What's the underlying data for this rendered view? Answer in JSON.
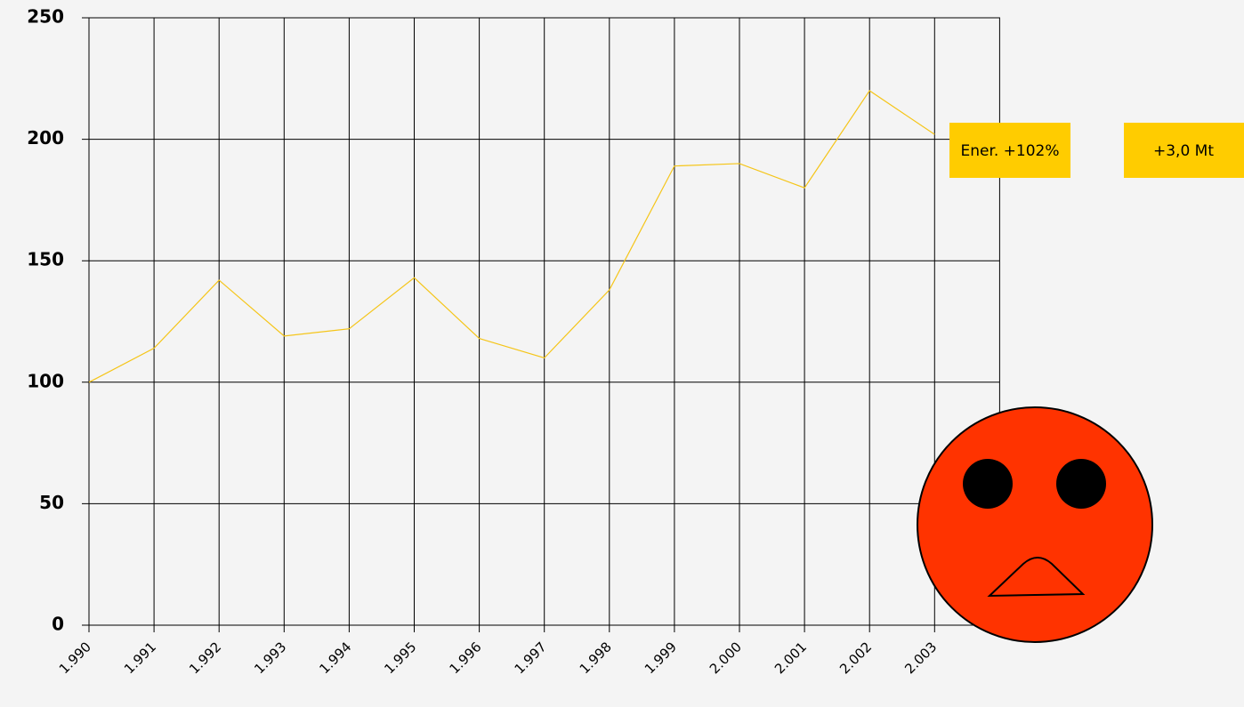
{
  "chart_data": {
    "type": "line",
    "categories": [
      "1.990",
      "1.991",
      "1.992",
      "1.993",
      "1.994",
      "1.995",
      "1.996",
      "1.997",
      "1.998",
      "1.999",
      "2.000",
      "2.001",
      "2.002",
      "2.003"
    ],
    "series": [
      {
        "name": "Ener.",
        "color": "#f5c518",
        "values": [
          100,
          114,
          142,
          119,
          122,
          143,
          118,
          110,
          138,
          189,
          190,
          180,
          220,
          202
        ]
      }
    ],
    "ylim": [
      0,
      250
    ],
    "yticks": [
      0,
      50,
      100,
      150,
      200,
      250
    ],
    "grid": true,
    "annotations": [
      "Ener. +102%",
      "+3,0 Mt"
    ]
  }
}
